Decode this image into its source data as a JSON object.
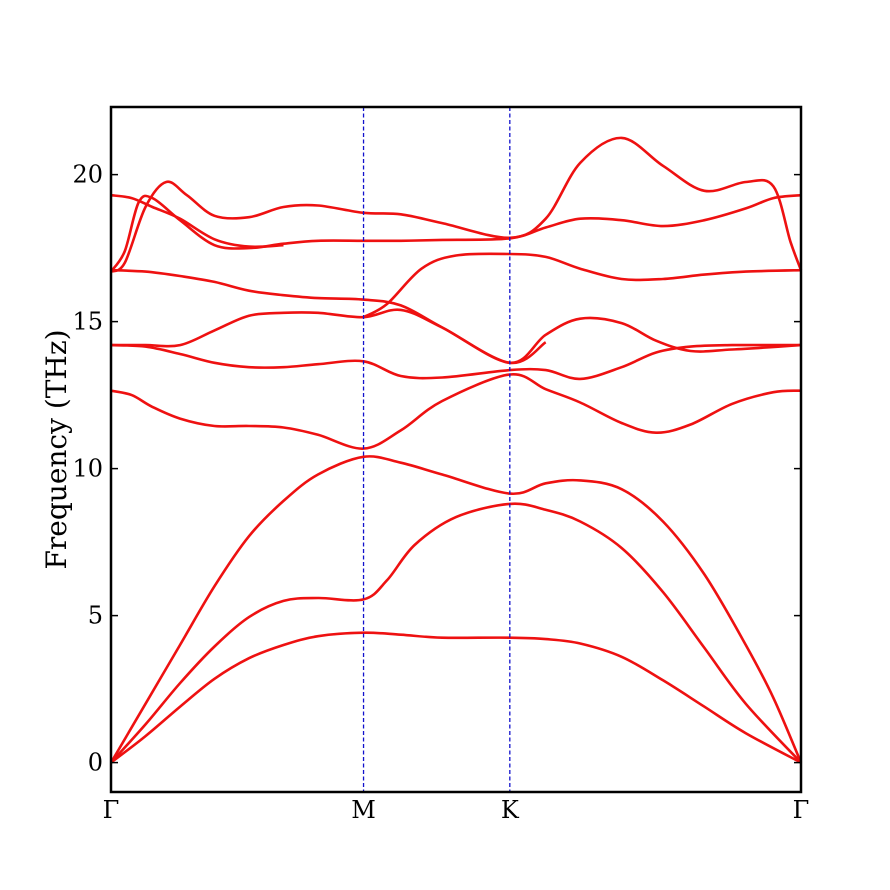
{
  "chart_data": {
    "type": "line",
    "title": "",
    "xlabel": "",
    "ylabel": "Frequency (THz)",
    "xlim": [
      0,
      1
    ],
    "ylim": [
      -1.0,
      22.3
    ],
    "y_ticks": [
      0,
      5,
      10,
      15,
      20
    ],
    "x_ticks": [
      {
        "label": "Γ",
        "x": 0.0
      },
      {
        "label": "M",
        "x": 0.366
      },
      {
        "label": "K",
        "x": 0.578
      },
      {
        "label": "Γ",
        "x": 1.0
      }
    ],
    "vlines": [
      0.366,
      0.578
    ],
    "grid": false,
    "legend": "none",
    "colors": {
      "bands": "#ee1111",
      "vlines": "#1111cc",
      "frame": "#000000"
    },
    "series": [
      {
        "points": [
          [
            0,
            0
          ],
          [
            0.05,
            0.9
          ],
          [
            0.1,
            1.9
          ],
          [
            0.15,
            2.85
          ],
          [
            0.2,
            3.55
          ],
          [
            0.25,
            4.0
          ],
          [
            0.3,
            4.3
          ],
          [
            0.366,
            4.42
          ],
          [
            0.42,
            4.35
          ],
          [
            0.48,
            4.25
          ],
          [
            0.578,
            4.25
          ],
          [
            0.63,
            4.2
          ],
          [
            0.68,
            4.05
          ],
          [
            0.74,
            3.6
          ],
          [
            0.8,
            2.8
          ],
          [
            0.86,
            1.9
          ],
          [
            0.92,
            1.0
          ],
          [
            1.0,
            0
          ]
        ]
      },
      {
        "points": [
          [
            0,
            0
          ],
          [
            0.05,
            1.3
          ],
          [
            0.1,
            2.7
          ],
          [
            0.15,
            3.95
          ],
          [
            0.2,
            4.95
          ],
          [
            0.25,
            5.5
          ],
          [
            0.3,
            5.6
          ],
          [
            0.366,
            5.55
          ],
          [
            0.4,
            6.2
          ],
          [
            0.44,
            7.4
          ],
          [
            0.5,
            8.35
          ],
          [
            0.578,
            8.8
          ],
          [
            0.63,
            8.6
          ],
          [
            0.68,
            8.2
          ],
          [
            0.74,
            7.3
          ],
          [
            0.8,
            5.8
          ],
          [
            0.86,
            3.9
          ],
          [
            0.92,
            2.0
          ],
          [
            1.0,
            0
          ]
        ]
      },
      {
        "points": [
          [
            0,
            0
          ],
          [
            0.05,
            2.0
          ],
          [
            0.1,
            4.0
          ],
          [
            0.15,
            6.0
          ],
          [
            0.2,
            7.7
          ],
          [
            0.25,
            8.9
          ],
          [
            0.3,
            9.8
          ],
          [
            0.366,
            10.4
          ],
          [
            0.42,
            10.2
          ],
          [
            0.48,
            9.8
          ],
          [
            0.578,
            9.15
          ],
          [
            0.63,
            9.5
          ],
          [
            0.68,
            9.6
          ],
          [
            0.74,
            9.3
          ],
          [
            0.8,
            8.2
          ],
          [
            0.86,
            6.4
          ],
          [
            0.92,
            4.0
          ],
          [
            0.96,
            2.2
          ],
          [
            1.0,
            0
          ]
        ]
      },
      {
        "points": [
          [
            0,
            12.65
          ],
          [
            0.03,
            12.5
          ],
          [
            0.06,
            12.1
          ],
          [
            0.1,
            11.7
          ],
          [
            0.15,
            11.45
          ],
          [
            0.2,
            11.45
          ],
          [
            0.25,
            11.4
          ],
          [
            0.3,
            11.15
          ],
          [
            0.366,
            10.68
          ],
          [
            0.42,
            11.3
          ],
          [
            0.48,
            12.3
          ],
          [
            0.578,
            13.2
          ],
          [
            0.63,
            12.7
          ],
          [
            0.68,
            12.25
          ],
          [
            0.74,
            11.55
          ],
          [
            0.79,
            11.22
          ],
          [
            0.84,
            11.5
          ],
          [
            0.9,
            12.2
          ],
          [
            0.96,
            12.6
          ],
          [
            1.0,
            12.65
          ]
        ]
      },
      {
        "points": [
          [
            0,
            14.2
          ],
          [
            0.05,
            14.15
          ],
          [
            0.1,
            13.9
          ],
          [
            0.15,
            13.6
          ],
          [
            0.2,
            13.45
          ],
          [
            0.25,
            13.45
          ],
          [
            0.3,
            13.55
          ],
          [
            0.366,
            13.65
          ],
          [
            0.42,
            13.15
          ],
          [
            0.48,
            13.1
          ],
          [
            0.578,
            13.35
          ],
          [
            0.63,
            13.35
          ],
          [
            0.68,
            13.05
          ],
          [
            0.74,
            13.45
          ],
          [
            0.79,
            13.95
          ],
          [
            0.84,
            14.15
          ],
          [
            0.9,
            14.2
          ],
          [
            1.0,
            14.2
          ]
        ]
      },
      {
        "points": [
          [
            0,
            14.2
          ],
          [
            0.05,
            14.2
          ],
          [
            0.1,
            14.2
          ],
          [
            0.15,
            14.7
          ],
          [
            0.2,
            15.2
          ],
          [
            0.25,
            15.3
          ],
          [
            0.3,
            15.3
          ],
          [
            0.366,
            15.15
          ],
          [
            0.42,
            15.4
          ],
          [
            0.48,
            14.8
          ],
          [
            0.578,
            13.6
          ],
          [
            0.63,
            14.55
          ],
          [
            0.68,
            15.1
          ],
          [
            0.74,
            14.95
          ],
          [
            0.79,
            14.35
          ],
          [
            0.84,
            14.0
          ],
          [
            0.9,
            14.05
          ],
          [
            1.0,
            14.2
          ]
        ]
      },
      {
        "points": [
          [
            0,
            16.75
          ],
          [
            0.05,
            16.7
          ],
          [
            0.1,
            16.55
          ],
          [
            0.15,
            16.35
          ],
          [
            0.2,
            16.05
          ],
          [
            0.25,
            15.9
          ],
          [
            0.3,
            15.8
          ],
          [
            0.366,
            15.75
          ],
          [
            0.42,
            15.55
          ],
          [
            0.48,
            14.8
          ],
          [
            0.578,
            13.6
          ],
          [
            0.63,
            14.3
          ]
        ]
      },
      {
        "points": [
          [
            0.366,
            15.15
          ],
          [
            0.4,
            15.6
          ],
          [
            0.45,
            16.8
          ],
          [
            0.5,
            17.25
          ],
          [
            0.578,
            17.3
          ],
          [
            0.63,
            17.2
          ],
          [
            0.68,
            16.8
          ],
          [
            0.74,
            16.45
          ],
          [
            0.8,
            16.45
          ],
          [
            0.86,
            16.6
          ],
          [
            0.92,
            16.7
          ],
          [
            1.0,
            16.75
          ]
        ]
      },
      {
        "points": [
          [
            0,
            16.7
          ],
          [
            0.02,
            17.4
          ],
          [
            0.04,
            19.05
          ],
          [
            0.06,
            19.2
          ],
          [
            0.1,
            18.45
          ],
          [
            0.15,
            17.6
          ],
          [
            0.2,
            17.5
          ],
          [
            0.25,
            17.65
          ],
          [
            0.3,
            17.75
          ],
          [
            0.366,
            17.75
          ],
          [
            0.42,
            17.75
          ],
          [
            0.48,
            17.78
          ],
          [
            0.578,
            17.83
          ],
          [
            0.63,
            18.2
          ],
          [
            0.68,
            18.5
          ],
          [
            0.74,
            18.45
          ],
          [
            0.8,
            18.25
          ],
          [
            0.86,
            18.45
          ],
          [
            0.92,
            18.85
          ],
          [
            0.96,
            19.2
          ],
          [
            1.0,
            19.3
          ]
        ]
      },
      {
        "points": [
          [
            0,
            19.3
          ],
          [
            0.03,
            19.2
          ],
          [
            0.06,
            18.9
          ],
          [
            0.1,
            18.5
          ],
          [
            0.15,
            17.8
          ],
          [
            0.2,
            17.55
          ],
          [
            0.25,
            17.6
          ]
        ]
      },
      {
        "points": [
          [
            0,
            16.7
          ],
          [
            0.02,
            17.0
          ],
          [
            0.05,
            18.9
          ],
          [
            0.08,
            19.75
          ],
          [
            0.11,
            19.3
          ],
          [
            0.15,
            18.6
          ],
          [
            0.2,
            18.55
          ],
          [
            0.25,
            18.9
          ],
          [
            0.3,
            18.95
          ],
          [
            0.366,
            18.7
          ],
          [
            0.42,
            18.65
          ],
          [
            0.48,
            18.35
          ],
          [
            0.578,
            17.85
          ],
          [
            0.63,
            18.5
          ],
          [
            0.68,
            20.4
          ],
          [
            0.74,
            21.25
          ],
          [
            0.8,
            20.3
          ],
          [
            0.86,
            19.45
          ],
          [
            0.92,
            19.75
          ],
          [
            0.96,
            19.6
          ],
          [
            0.985,
            17.7
          ],
          [
            1.0,
            16.75
          ]
        ]
      }
    ]
  }
}
